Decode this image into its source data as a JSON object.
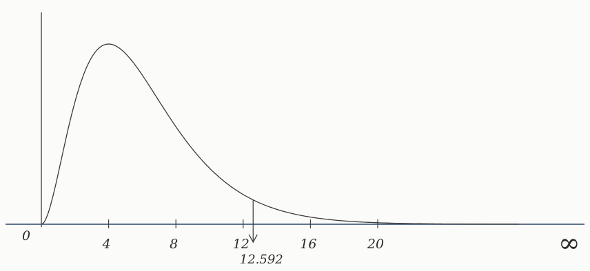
{
  "chart_data": {
    "type": "line",
    "distribution": "chi-square",
    "degrees_of_freedom": 6,
    "title": "",
    "xlabel": "",
    "ylabel": "",
    "xlim": [
      0,
      36
    ],
    "x_ticks": [
      4,
      8,
      12,
      16,
      20
    ],
    "x_tick_labels": [
      "4",
      "8",
      "12",
      "16",
      "20"
    ],
    "origin_label": "0",
    "end_label": "∞",
    "critical_value": 12.592,
    "critical_value_label": "12.592",
    "grid": false,
    "legend": "none",
    "line_color": "#3a3a3a",
    "axis_color": "#4a5e7a"
  }
}
